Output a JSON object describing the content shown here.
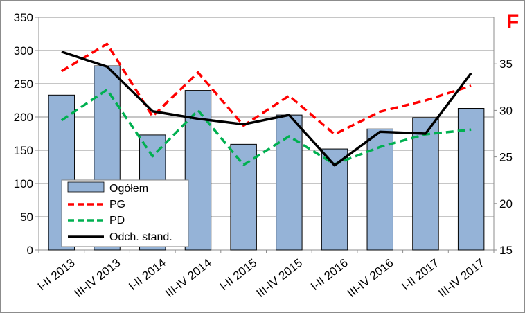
{
  "chart_data": {
    "type": "bar",
    "title": "",
    "xlabel": "",
    "ylabel": "",
    "corner_label": "F",
    "categories": [
      "I-II 2013",
      "III-IV 2013",
      "I-II 2014",
      "III-IV 2014",
      "I-II 2015",
      "III-IV 2015",
      "I-II 2016",
      "III-IV 2016",
      "I-II 2017",
      "III-IV 2017"
    ],
    "y_left": {
      "min": 0,
      "max": 350,
      "ticks": [
        "0",
        "50",
        "100",
        "150",
        "200",
        "250",
        "300",
        "350"
      ]
    },
    "y_right": {
      "min": 15,
      "max": 40,
      "ticks": [
        "15",
        "20",
        "25",
        "30",
        "35"
      ]
    },
    "grid": true,
    "legend_position": "bottom-left",
    "series": [
      {
        "name": "Ogółem",
        "type": "bar",
        "axis": "left",
        "color": "#95b3d7",
        "values": [
          233,
          277,
          173,
          240,
          159,
          203,
          152,
          182,
          199,
          213
        ]
      },
      {
        "name": "PG",
        "type": "line",
        "axis": "left",
        "color": "#ff0000",
        "dash": "dashed",
        "values": [
          269,
          310,
          201,
          267,
          187,
          232,
          174,
          208,
          225,
          247
        ]
      },
      {
        "name": "PD",
        "type": "line",
        "axis": "left",
        "color": "#00b050",
        "dash": "dashed",
        "values": [
          195,
          241,
          141,
          210,
          128,
          171,
          129,
          155,
          174,
          181
        ]
      },
      {
        "name": "Odch. stand.",
        "type": "line",
        "axis": "right",
        "color": "#000000",
        "dash": "solid",
        "values": [
          36.3,
          34.7,
          29.9,
          29.1,
          28.5,
          29.5,
          24.1,
          27.7,
          27.5,
          34.0
        ]
      }
    ]
  }
}
